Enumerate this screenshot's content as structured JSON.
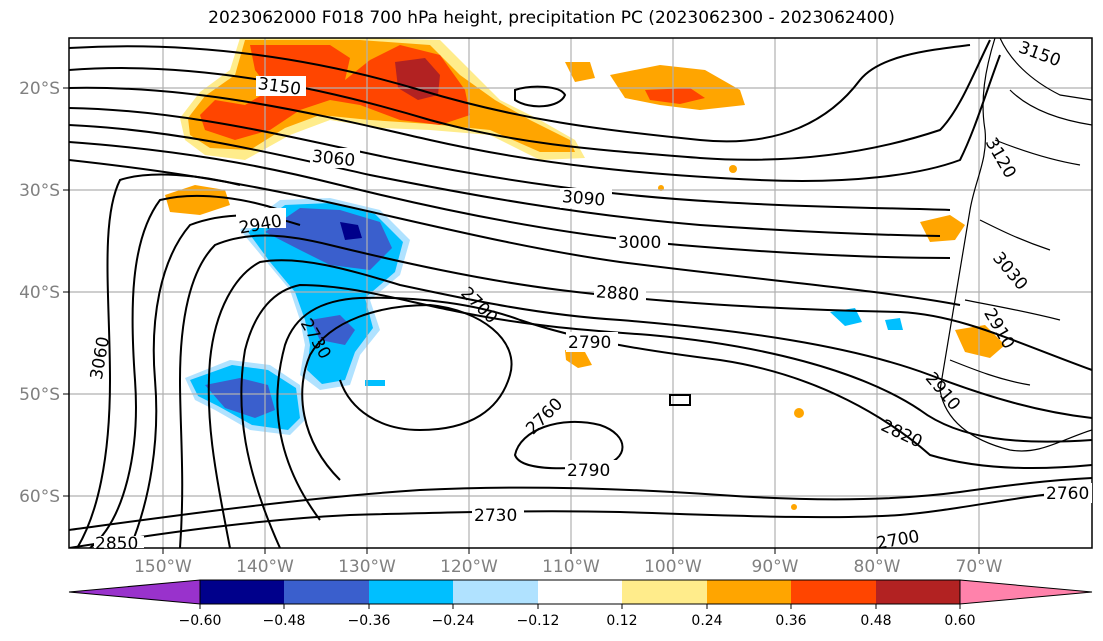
{
  "title": "2023062000 F018 700 hPa height, precipitation PC (2023062300 - 2023062400)",
  "map": {
    "lon_ticks": [
      "150°W",
      "140°W",
      "130°W",
      "120°W",
      "110°W",
      "100°W",
      "90°W",
      "80°W",
      "70°W"
    ],
    "lat_ticks": [
      "20°S",
      "30°S",
      "40°S",
      "50°S",
      "60°S"
    ],
    "contour_labels": [
      "3150",
      "3060",
      "2940",
      "3090",
      "3000",
      "2880",
      "2790",
      "2700",
      "2730",
      "3060",
      "2760",
      "2790",
      "2730",
      "2850",
      "3150",
      "3120",
      "3030",
      "2910",
      "2910",
      "2820",
      "2760",
      "2700"
    ],
    "colors": {
      "land_outline": "#000000",
      "grid": "#b0b0b0",
      "contour": "#000000"
    }
  },
  "colorbar": {
    "ticks": [
      "−0.60",
      "−0.48",
      "−0.36",
      "−0.24",
      "−0.12",
      "0.12",
      "0.24",
      "0.36",
      "0.48",
      "0.60"
    ],
    "colors": [
      "#9932cc",
      "#00008b",
      "#3a5fcd",
      "#00bfff",
      "#b0e2ff",
      "#ffffff",
      "#ffec8b",
      "#ffa500",
      "#ff4500",
      "#b22222",
      "#ff82ab"
    ]
  }
}
